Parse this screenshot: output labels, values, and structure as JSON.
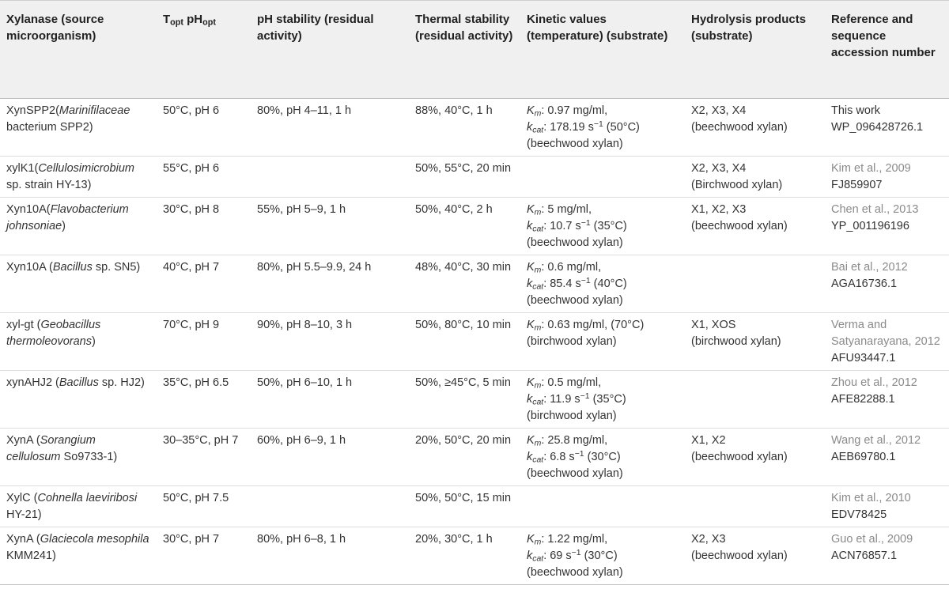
{
  "headers": {
    "c0": "Xylanase (source microorganism)",
    "c1a": "T",
    "c1a_sub": "opt",
    "c1b": " pH",
    "c1b_sub": "opt",
    "c2": "pH stability (residual activity)",
    "c3": "Thermal stability (residual activity)",
    "c4": "Kinetic values (temperature) (substrate)",
    "c5": "Hydrolysis products (substrate)",
    "c6": "Reference and sequence accession number"
  },
  "rows": [
    {
      "name": "XynSPP2",
      "source_pre": "(",
      "source_italic": "Marinifilaceae",
      "source_post": " bacterium SPP2)",
      "topt": "50°C, pH 6",
      "ph_stability": "80%, pH 4–11, 1 h",
      "thermal": "88%, 40°C, 1 h",
      "km_label": "K",
      "km_sub": "m",
      "km_value": ": 0.97 mg/ml,",
      "kcat_label": "k",
      "kcat_sub": "cat",
      "kcat_value": ": 178.19 s",
      "kcat_sup": "−1",
      "kcat_temp": " (50°C)",
      "kin_substrate": "(beechwood xylan)",
      "products": "X2, X3, X4",
      "products_substrate": "(beechwood xylan)",
      "ref": "This work",
      "accession": "WP_096428726.1",
      "ref_is_link": false
    },
    {
      "name": "xylK1",
      "source_pre": "(",
      "source_italic": "Cellulosimicrobium",
      "source_post": " sp. strain HY-13)",
      "topt": "55°C, pH 6",
      "ph_stability": "",
      "thermal": "50%, 55°C, 20 min",
      "products": "X2, X3, X4",
      "products_substrate": "(Birchwood xylan)",
      "ref": "Kim et al., 2009",
      "accession": "FJ859907",
      "ref_is_link": true
    },
    {
      "name": "Xyn10A",
      "source_pre": "(",
      "source_italic": "Flavobacterium johnsoniae",
      "source_post": ")",
      "topt": "30°C, pH 8",
      "ph_stability": "55%, pH 5–9, 1 h",
      "thermal": "50%, 40°C, 2 h",
      "km_label": "K",
      "km_sub": "m",
      "km_value": ": 5 mg/ml,",
      "kcat_label": "k",
      "kcat_sub": "cat",
      "kcat_value": ": 10.7 s",
      "kcat_sup": "−1",
      "kcat_temp": " (35°C)",
      "kin_substrate": "(beechwood xylan)",
      "products": "X1, X2, X3",
      "products_substrate": "(beechwood xylan)",
      "ref": "Chen et al., 2013",
      "accession": "YP_001196196",
      "ref_is_link": true
    },
    {
      "name": "Xyn10A",
      "source_pre": " (",
      "source_italic": "Bacillus",
      "source_post": " sp. SN5)",
      "topt": "40°C, pH 7",
      "ph_stability": "80%, pH 5.5–9.9, 24 h",
      "thermal": "48%, 40°C, 30 min",
      "km_label": "K",
      "km_sub": "m",
      "km_value": ": 0.6 mg/ml,",
      "kcat_label": "k",
      "kcat_sub": "cat",
      "kcat_value": ": 85.4 s",
      "kcat_sup": "−1",
      "kcat_temp": " (40°C)",
      "kin_substrate": "(beechwood xylan)",
      "products": "",
      "products_substrate": "",
      "ref": "Bai et al., 2012",
      "accession": "AGA16736.1",
      "ref_is_link": true
    },
    {
      "name": "xyl-gt",
      "source_pre": " (",
      "source_italic": "Geobacillus thermoleovorans",
      "source_post": ")",
      "topt": "70°C, pH 9",
      "ph_stability": "90%, pH 8–10, 3 h",
      "thermal": "50%, 80°C, 10 min",
      "km_label": "K",
      "km_sub": "m",
      "km_value": ": 0.63 mg/ml, (70°C)",
      "kin_substrate": "(birchwood xylan)",
      "products": "X1, XOS",
      "products_substrate": "(birchwood xylan)",
      "ref": "Verma and Satyanarayana, 2012",
      "accession": " AFU93447.1",
      "ref_is_link": true
    },
    {
      "name": "xynAHJ2",
      "source_pre": " (",
      "source_italic": "Bacillus",
      "source_post": " sp. HJ2)",
      "topt": "35°C, pH 6.5",
      "ph_stability": "50%, pH 6–10, 1 h",
      "thermal": "50%, ≥45°C, 5 min",
      "km_label": "K",
      "km_sub": "m",
      "km_value": ": 0.5 mg/ml,",
      "kcat_label": "k",
      "kcat_sub": "cat",
      "kcat_value": ": 11.9 s",
      "kcat_sup": "−1",
      "kcat_temp": " (35°C)",
      "kin_substrate": "(birchwood xylan)",
      "products": "",
      "products_substrate": "",
      "ref": "Zhou et al., 2012",
      "accession": "AFE82288.1",
      "ref_is_link": true
    },
    {
      "name": "XynA",
      "source_pre": " (",
      "source_italic": "Sorangium cellulosum",
      "source_post": " So9733-1)",
      "topt": "30–35°C, pH 7",
      "ph_stability": "60%, pH 6–9, 1 h",
      "thermal": "20%, 50°C, 20 min",
      "km_label": "K",
      "km_sub": "m",
      "km_value": ": 25.8 mg/ml,",
      "kcat_label": "k",
      "kcat_sub": "cat",
      "kcat_value": ": 6.8 s",
      "kcat_sup": "−1",
      "kcat_temp": " (30°C)",
      "kin_substrate": "(beechwood xylan)",
      "products": "X1, X2",
      "products_substrate": "(beechwood xylan)",
      "ref": "Wang et al., 2012",
      "accession": "AEB69780.1",
      "ref_is_link": true
    },
    {
      "name": "XylC",
      "source_pre": " (",
      "source_italic": "Cohnella laeviribosi",
      "source_post": " HY-21)",
      "topt": "50°C, pH 7.5",
      "ph_stability": "",
      "thermal": "50%, 50°C, 15 min",
      "products": "",
      "products_substrate": "",
      "ref": "Kim et al., 2010",
      "accession": "EDV78425",
      "ref_is_link": true
    },
    {
      "name": "XynA",
      "source_pre": " (",
      "source_italic": "Glaciecola mesophila",
      "source_post": " KMM241)",
      "topt": "30°C, pH 7",
      "ph_stability": "80%, pH 6–8, 1 h",
      "thermal": "20%, 30°C, 1 h",
      "km_label": "K",
      "km_sub": "m",
      "km_value": ": 1.22 mg/ml,",
      "kcat_label": "k",
      "kcat_sub": "cat",
      "kcat_value": ": 69 s",
      "kcat_sup": "−1",
      "kcat_temp": " (30°C)",
      "kin_substrate": "(beechwood xylan)",
      "products": "X2, X3",
      "products_substrate": "(beechwood xylan)",
      "ref": "Guo et al., 2009",
      "accession": "ACN76857.1",
      "ref_is_link": true
    }
  ]
}
